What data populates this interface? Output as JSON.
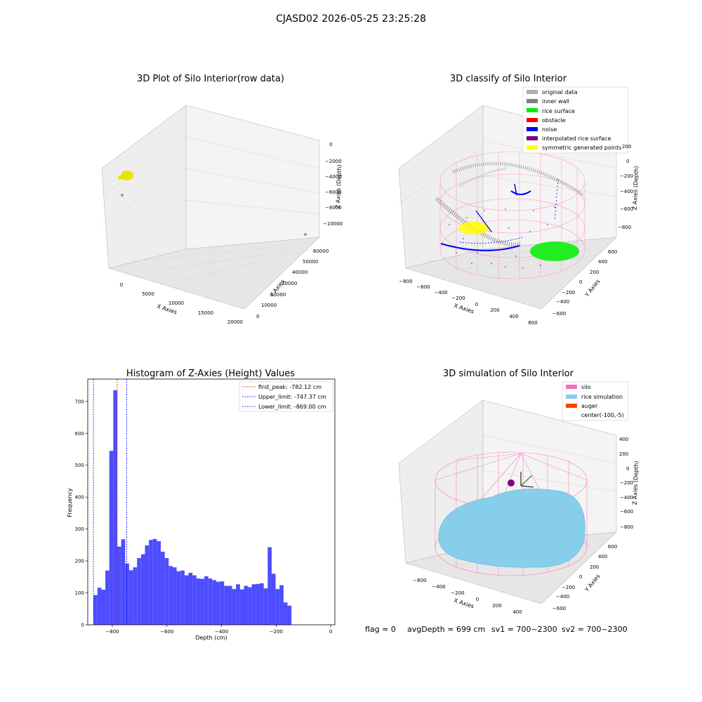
{
  "suptitle": "CJASD02 2026-05-25 23:25:28",
  "status": {
    "flag": "flag = 0",
    "avg_depth": "avgDepth = 699 cm",
    "sv1": "sv1 = 700~2300",
    "sv2": "sv2 = 700~2300"
  },
  "colors": {
    "original_data": "#b0b0b0",
    "inner_wall": "#808080",
    "rice_surface": "#00ee00",
    "obstacle": "#ff0000",
    "noise": "#0000ff",
    "interpolated": "#800080",
    "symmetric": "#ffff00",
    "silo": "#ff69b4",
    "rice_sim": "#87ceeb",
    "auger": "#ff4500",
    "hist_bar": "#4d4dff"
  },
  "chart_data": [
    {
      "type": "scatter",
      "projection": "3d",
      "title": "3D Plot of Silo Interior(row data)",
      "xlabel": "X Axies",
      "ylabel": "Y Axies",
      "zlabel": "Z Axies (Depth)",
      "x_ticks": [
        "0",
        "5000",
        "10000",
        "15000",
        "20000"
      ],
      "y_ticks": [
        "0",
        "10000",
        "20000",
        "30000",
        "40000",
        "50000",
        "60000"
      ],
      "z_ticks": [
        "0",
        "−2000",
        "−4000",
        "−6000",
        "−8000",
        "−10000"
      ],
      "series": [
        {
          "color": "yellow",
          "points": [
            {
              "x": 300,
              "y": 55000,
              "z": -3000
            }
          ]
        },
        {
          "color": "green",
          "points": [
            {
              "x": 200,
              "y": 55000,
              "z": -5500
            }
          ]
        },
        {
          "color": "gray",
          "points": [
            {
              "x": 20000,
              "y": 0,
              "z": -11000
            }
          ]
        }
      ]
    },
    {
      "type": "scatter",
      "projection": "3d",
      "title": "3D classify of Silo Interior",
      "xlabel": "X Axies",
      "ylabel": "Y Axies",
      "zlabel": "Z Axies (Depth)",
      "x_ticks": [
        "−800",
        "−600",
        "−400",
        "−200",
        "0",
        "200",
        "400",
        "600"
      ],
      "y_ticks": [
        "−600",
        "−400",
        "−200",
        "0",
        "200",
        "400",
        "600"
      ],
      "z_ticks": [
        "200",
        "0",
        "−200",
        "−400",
        "−600",
        "−800"
      ],
      "legend_position": "top-right",
      "legend": [
        {
          "label": "original data",
          "color": "#b0b0b0"
        },
        {
          "label": "inner wall",
          "color": "#808080"
        },
        {
          "label": "rice surface",
          "color": "#00ee00"
        },
        {
          "label": "obstacle",
          "color": "#ff0000"
        },
        {
          "label": "noise",
          "color": "#0000ff"
        },
        {
          "label": "interpolated rice surface",
          "color": "#800080"
        },
        {
          "label": "symmetric generated points",
          "color": "#ffff00"
        }
      ]
    },
    {
      "type": "bar",
      "title": "Histogram of Z-Axies (Height) Values",
      "xlabel": "Depth (cm)",
      "ylabel": "Frequency",
      "xlim": [
        -890,
        15
      ],
      "ylim": [
        0,
        770
      ],
      "x_ticks": [
        -800,
        -600,
        -400,
        -200,
        0
      ],
      "x_tick_labels": [
        "−800",
        "−600",
        "−400",
        "−200",
        "0"
      ],
      "y_ticks": [
        0,
        100,
        200,
        300,
        400,
        500,
        600,
        700
      ],
      "y_tick_labels": [
        "0",
        "100",
        "200",
        "300",
        "400",
        "500",
        "600",
        "700"
      ],
      "bin_start": -869,
      "bin_width": 14.5,
      "values": [
        93,
        116,
        110,
        170,
        545,
        735,
        245,
        268,
        192,
        171,
        180,
        209,
        221,
        249,
        266,
        269,
        262,
        229,
        209,
        184,
        180,
        168,
        170,
        155,
        163,
        155,
        145,
        144,
        152,
        145,
        140,
        135,
        136,
        122,
        122,
        112,
        127,
        111,
        122,
        118,
        127,
        128,
        130,
        114,
        243,
        160,
        112,
        124,
        70,
        60
      ],
      "vlines": [
        {
          "x": -782.12,
          "label": "first_peak: -782.12 cm",
          "color": "#ff0000"
        },
        {
          "x": -747.37,
          "label": "Upper_limit: -747.37 cm",
          "color": "#0000ff"
        },
        {
          "x": -869.0,
          "label": "Lower_limit: -869.00 cm",
          "color": "#0000ff"
        }
      ],
      "legend_position": "top-right"
    },
    {
      "type": "scatter",
      "projection": "3d",
      "title": "3D simulation of Silo Interior",
      "xlabel": "X Axies",
      "ylabel": "Y Axies",
      "zlabel": "Z Axies (Depth)",
      "x_ticks": [
        "−600",
        "−400",
        "−200",
        "0",
        "200",
        "400"
      ],
      "y_ticks": [
        "−600",
        "−400",
        "−200",
        "0",
        "200",
        "400",
        "600"
      ],
      "z_ticks": [
        "400",
        "200",
        "0",
        "−200",
        "−400",
        "−600",
        "−800"
      ],
      "legend_position": "top-right",
      "legend": [
        {
          "label": "silo",
          "color": "#ff69b4"
        },
        {
          "label": "rice simulation",
          "color": "#87ceeb"
        },
        {
          "label": "auger",
          "color": "#ff4500"
        },
        {
          "label": "center(-100,-5)",
          "color": ""
        }
      ]
    }
  ]
}
